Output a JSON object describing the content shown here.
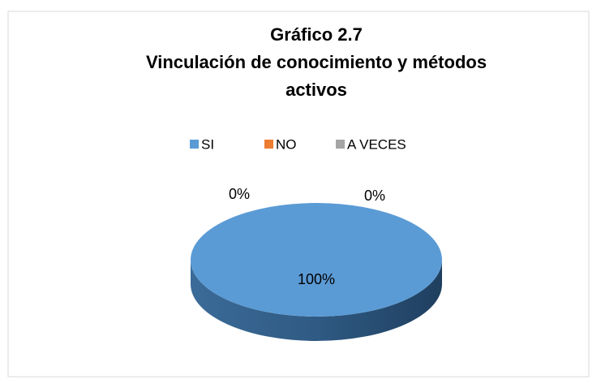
{
  "chart_data": {
    "type": "pie3d",
    "title": "Gráfico 2.7",
    "subtitle": "Vinculación de conocimiento y métodos activos",
    "categories": [
      "SI",
      "NO",
      "A  VECES"
    ],
    "values": [
      100,
      0,
      0
    ],
    "value_labels": [
      "100%",
      "0%",
      "0%"
    ],
    "colors": [
      "#5b9bd5",
      "#ed7d31",
      "#a5a5a5"
    ],
    "legend": "top"
  }
}
